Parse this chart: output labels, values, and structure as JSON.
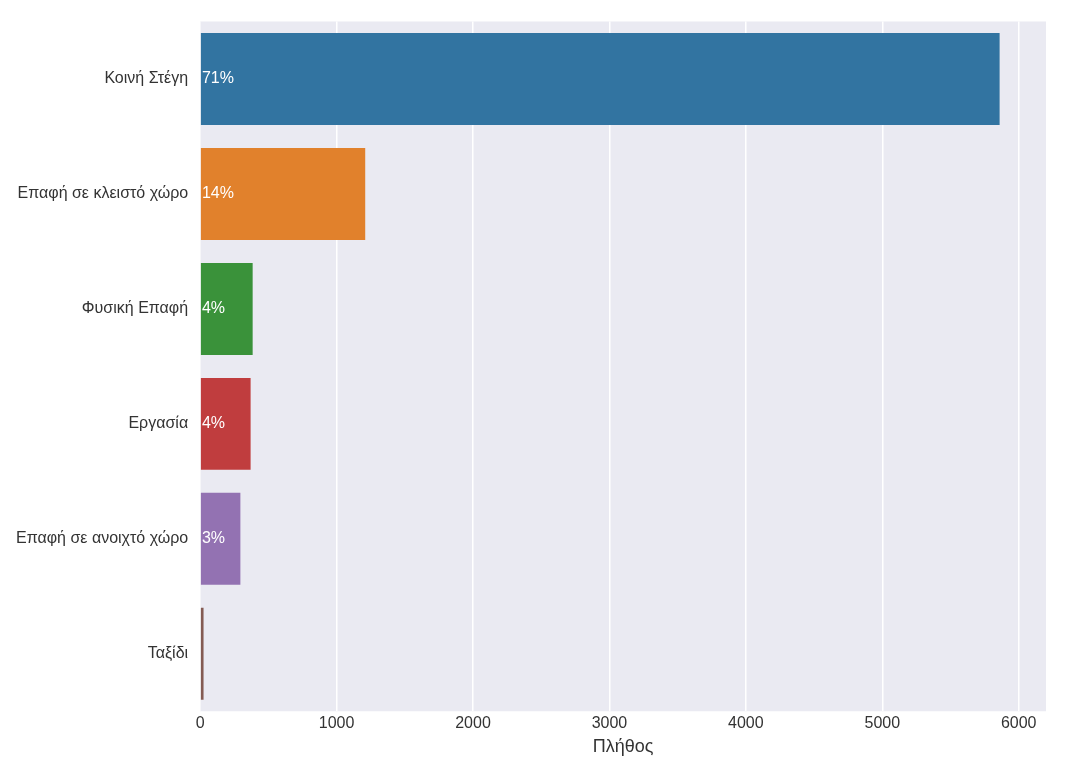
{
  "chart_data": {
    "type": "bar",
    "orientation": "horizontal",
    "xlabel": "Πλήθος",
    "categories": [
      "Κοινή Στέγη",
      "Επαφή σε κλειστό χώρο",
      "Φυσική Επαφή",
      "Εργασία",
      "Επαφή σε ανοιχτό χώρο",
      "Ταξίδι"
    ],
    "values": [
      5860,
      1210,
      385,
      370,
      295,
      25
    ],
    "colors": [
      "#3274a1",
      "#e1812c",
      "#3a923a",
      "#c03d3e",
      "#9372b2",
      "#845b53"
    ],
    "annotations": [
      {
        "text": "71%",
        "y": "Κοινή Στέγη"
      },
      {
        "text": "14%",
        "y": "Επαφή σε κλειστό χώρο"
      },
      {
        "text": "4%",
        "y": "Φυσική Επαφή"
      },
      {
        "text": "4%",
        "y": "Εργασία"
      },
      {
        "text": "3%",
        "y": "Επαφή σε ανοιχτό χώρο"
      }
    ],
    "xlim": [
      0,
      6200
    ],
    "xticks": [
      0,
      1000,
      2000,
      3000,
      4000,
      5000,
      6000
    ],
    "grid": "x",
    "legend": false
  }
}
